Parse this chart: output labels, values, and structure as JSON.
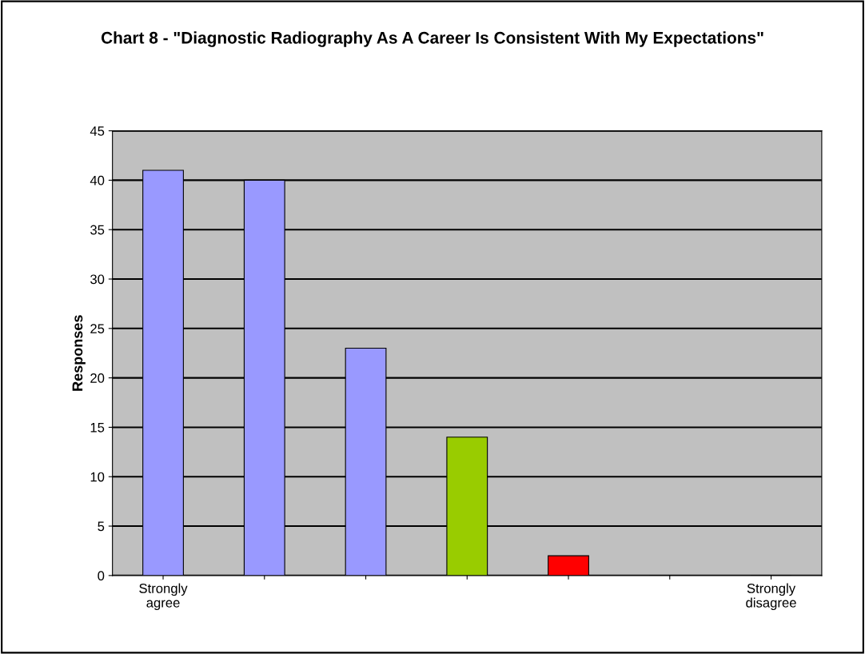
{
  "chart_data": {
    "type": "bar",
    "title": "Chart 8 - \"Diagnostic Radiography As A Career Is Consistent With My Expectations\"",
    "ylabel": "Responses",
    "categories": [
      "Strongly\nagree",
      null,
      null,
      null,
      null,
      null,
      "Strongly\ndisagree"
    ],
    "values": [
      41,
      40,
      23,
      14,
      2,
      0,
      0
    ],
    "colors": [
      "#9999ff",
      "#9999ff",
      "#9999ff",
      "#99cc00",
      "#ff0000",
      "#ff0000",
      "#ff0000"
    ],
    "ylim": [
      0,
      45
    ],
    "yticks": [
      0,
      5,
      10,
      15,
      20,
      25,
      30,
      35,
      40,
      45
    ],
    "grid": "y"
  }
}
